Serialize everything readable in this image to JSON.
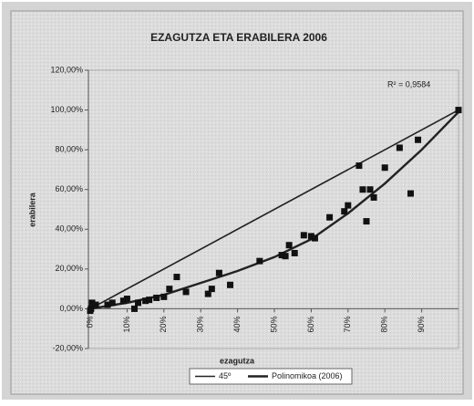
{
  "chart_data": {
    "type": "scatter",
    "title": "EZAGUTZA ETA ERABILERA 2006",
    "x_label": "ezagutza",
    "y_label": "erabilera",
    "annotation": "R² = 0,9584",
    "xlim": [
      0,
      100
    ],
    "ylim": [
      -20,
      120
    ],
    "xticks": [
      {
        "value": 0,
        "label": "0%"
      },
      {
        "value": 10,
        "label": "10%"
      },
      {
        "value": 20,
        "label": "20%"
      },
      {
        "value": 30,
        "label": "30%"
      },
      {
        "value": 40,
        "label": "40%"
      },
      {
        "value": 50,
        "label": "50%"
      },
      {
        "value": 60,
        "label": "60%"
      },
      {
        "value": 70,
        "label": "70%"
      },
      {
        "value": 80,
        "label": "80%"
      },
      {
        "value": 90,
        "label": "90%"
      }
    ],
    "yticks": [
      {
        "value": -20,
        "label": "-20,00%"
      },
      {
        "value": 0,
        "label": "0,00%"
      },
      {
        "value": 20,
        "label": "20,00%"
      },
      {
        "value": 40,
        "label": "40,00%"
      },
      {
        "value": 60,
        "label": "60,00%"
      },
      {
        "value": 80,
        "label": "80,00%"
      },
      {
        "value": 100,
        "label": "100,00%"
      },
      {
        "value": 120,
        "label": "120,00%"
      }
    ],
    "points": {
      "color": "#111111",
      "x": [
        0.2,
        0.5,
        0,
        1.5,
        4.7,
        6,
        9,
        10,
        12,
        13,
        15,
        16,
        18,
        20,
        21.5,
        23.5,
        26,
        32,
        33,
        35,
        38,
        46,
        52,
        53,
        54,
        55.5,
        58,
        60,
        61,
        65,
        69,
        70,
        73,
        74,
        75,
        76,
        77,
        80,
        84,
        87,
        89,
        100
      ],
      "values": [
        0,
        3,
        -1,
        2,
        2,
        3,
        4,
        5,
        0,
        3,
        4,
        4.5,
        5.5,
        6,
        10,
        16,
        8.5,
        7.5,
        10,
        18,
        12,
        24,
        27,
        26.5,
        32,
        28,
        37,
        36.5,
        35.5,
        46,
        49,
        52,
        72,
        60,
        44,
        60,
        56,
        71,
        81,
        58,
        85,
        100
      ]
    },
    "lines": [
      {
        "name": "45º",
        "color": "#222222",
        "width": 1.6,
        "x": [
          0,
          100
        ],
        "values": [
          0,
          100
        ]
      },
      {
        "name": "Polinomikoa (2006)",
        "color": "#222222",
        "width": 2.4,
        "x": [
          0,
          10,
          20,
          30,
          40,
          50,
          60,
          70,
          80,
          90,
          100
        ],
        "values": [
          0,
          3,
          7,
          13,
          19,
          26,
          35,
          48,
          63,
          80,
          99
        ]
      }
    ]
  }
}
